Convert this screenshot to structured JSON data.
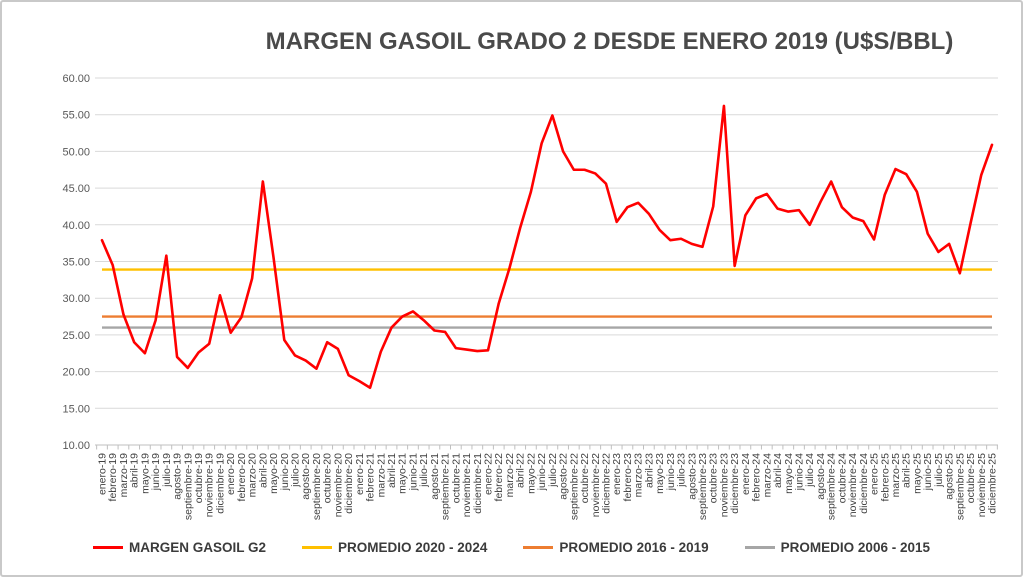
{
  "chart_data": {
    "type": "line",
    "title": "MARGEN GASOIL GRADO 2 DESDE ENERO 2019 (U$S/BBL)",
    "ylim": [
      10,
      60
    ],
    "ytick_step": 5,
    "ytick_labels": [
      "60.00",
      "55.00",
      "50.00",
      "45.00",
      "40.00",
      "35.00",
      "30.00",
      "25.00",
      "20.00",
      "15.00",
      "10.00"
    ],
    "grid": true,
    "legend_position": "bottom",
    "categories": [
      "enero-19",
      "febrero-19",
      "marzo-19",
      "abril-19",
      "mayo-19",
      "junio-19",
      "julio-19",
      "agosto-19",
      "septiembre-19",
      "octubre-19",
      "noviembre-19",
      "diciembre-19",
      "enero-20",
      "febrero-20",
      "marzo-20",
      "abril-20",
      "mayo-20",
      "junio-20",
      "julio-20",
      "agosto-20",
      "septiembre-20",
      "octubre-20",
      "noviembre-20",
      "diciembre-20",
      "enero-21",
      "febrero-21",
      "marzo-21",
      "abril-21",
      "mayo-21",
      "junio-21",
      "julio-21",
      "agosto-21",
      "septiembre-21",
      "octubre-21",
      "noviembre-21",
      "diciembre-21",
      "enero-22",
      "febrero-22",
      "marzo-22",
      "abril-22",
      "mayo-22",
      "junio-22",
      "julio-22",
      "agosto-22",
      "septiembre-22",
      "octubre-22",
      "noviembre-22",
      "diciembre-22",
      "enero-23",
      "febrero-23",
      "marzo-23",
      "abril-23",
      "mayo-23",
      "junio-23",
      "julio-23",
      "agosto-23",
      "septiembre-23",
      "octubre-23",
      "noviembre-23",
      "diciembre-23",
      "enero-24",
      "febrero-24",
      "marzo-24",
      "abril-24",
      "mayo-24",
      "junio-24",
      "julio-24",
      "agosto-24",
      "septiembre-24",
      "octubre-24",
      "noviembre-24",
      "diciembre-24",
      "enero-25",
      "febrero-25",
      "marzo-25",
      "abril-25",
      "mayo-25",
      "junio-25",
      "julio-25",
      "agosto-25",
      "septiembre-25",
      "octubre-25",
      "noviembre-25",
      "diciembre-25"
    ],
    "series": [
      {
        "name": "MARGEN GASOIL G2",
        "color": "#FF0000",
        "values": [
          37.9,
          34.5,
          27.8,
          24.0,
          22.5,
          27.0,
          35.8,
          22.0,
          20.5,
          22.6,
          23.8,
          30.4,
          25.3,
          27.4,
          32.7,
          45.9,
          35.5,
          24.3,
          22.2,
          21.5,
          20.4,
          24.0,
          23.1,
          19.5,
          18.7,
          17.8,
          22.7,
          26.0,
          27.5,
          28.2,
          27.0,
          25.6,
          25.4,
          23.2,
          23.0,
          22.8,
          22.9,
          29.3,
          34.1,
          39.6,
          44.5,
          51.1,
          54.9,
          50.0,
          47.5,
          47.5,
          47.0,
          45.6,
          40.4,
          42.4,
          43.0,
          41.5,
          39.3,
          37.9,
          38.1,
          37.4,
          37.0,
          42.5,
          56.2,
          34.4,
          41.3,
          43.6,
          44.2,
          42.2,
          41.8,
          42.0,
          40.0,
          43.1,
          45.9,
          42.4,
          41.0,
          40.5,
          38.0,
          44.1,
          47.6,
          46.9,
          44.5,
          38.8,
          36.3,
          37.4,
          33.4,
          40.2,
          46.8,
          50.9
        ]
      },
      {
        "name": "PROMEDIO 2020 - 2024",
        "color": "#FFC000",
        "constant": 33.9
      },
      {
        "name": "PROMEDIO 2016 - 2019",
        "color": "#ED7D31",
        "constant": 27.5
      },
      {
        "name": "PROMEDIO 2006 - 2015",
        "color": "#A6A6A6",
        "constant": 26.0
      }
    ]
  },
  "colors": {
    "grid": "#d9d9d9",
    "axis": "#bfbfbf",
    "y_label": "#595959",
    "x_label": "#3f3f3f",
    "title": "#4a4a4a"
  }
}
